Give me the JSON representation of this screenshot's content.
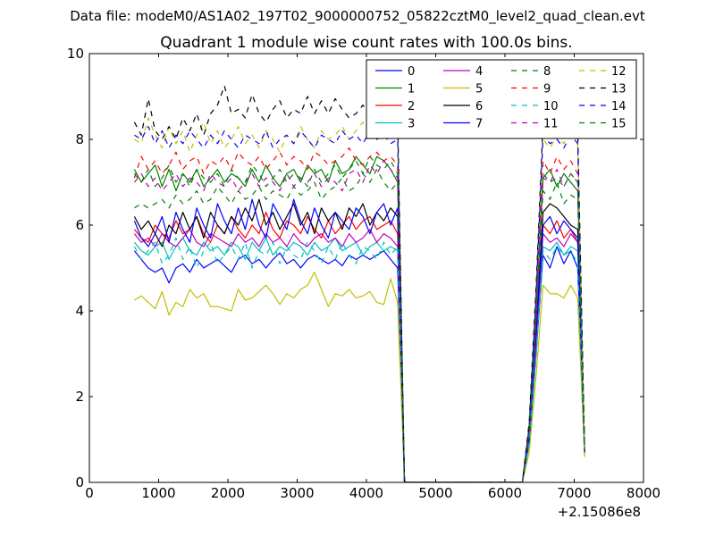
{
  "figure": {
    "suptitle": "Data file: modeM0/AS1A02_197T02_9000000752_05822cztM0_level2_quad_clean.evt",
    "title": "Quadrant 1 module wise count rates with 100.0s bins.",
    "x_offset_label": "+2.15086e8"
  },
  "chart_data": {
    "type": "line",
    "title": "Quadrant 1 module wise count rates with 100.0s bins.",
    "xlabel": "",
    "ylabel": "",
    "xlim": [
      0,
      8000
    ],
    "ylim": [
      0,
      10
    ],
    "x_ticks": [
      0,
      1000,
      2000,
      3000,
      4000,
      5000,
      6000,
      7000,
      8000
    ],
    "y_ticks": [
      0,
      2,
      4,
      6,
      8,
      10
    ],
    "x_offset": "+2.15086e8",
    "grid": false,
    "legend_position": "top-right",
    "legend_columns": 4,
    "x": [
      650,
      750,
      850,
      950,
      1050,
      1150,
      1250,
      1350,
      1450,
      1550,
      1650,
      1750,
      1850,
      1950,
      2050,
      2150,
      2250,
      2350,
      2450,
      2550,
      2650,
      2750,
      2850,
      2950,
      3050,
      3150,
      3250,
      3350,
      3450,
      3550,
      3650,
      3750,
      3850,
      3950,
      4050,
      4150,
      4250,
      4350,
      4450,
      4550,
      4650,
      4750,
      4850,
      4950,
      5050,
      5150,
      5250,
      5350,
      5450,
      5550,
      5650,
      5750,
      5850,
      5950,
      6050,
      6150,
      6250,
      6350,
      6450,
      6550,
      6650,
      6750,
      6850,
      6950,
      7050,
      7150
    ],
    "series": [
      {
        "name": "0",
        "color": "#0000ff",
        "dash": "solid",
        "values": [
          5.4,
          5.2,
          5.0,
          4.9,
          5.0,
          4.65,
          5.0,
          5.1,
          4.9,
          5.2,
          5.0,
          5.1,
          5.2,
          5.05,
          4.9,
          5.2,
          5.3,
          5.1,
          5.2,
          5.0,
          5.2,
          5.35,
          5.1,
          5.2,
          5.0,
          5.2,
          5.3,
          5.2,
          5.1,
          5.2,
          5.05,
          5.3,
          5.2,
          5.3,
          5.2,
          5.3,
          5.4,
          5.2,
          5.0,
          0.0,
          0,
          0,
          0,
          0,
          0,
          0,
          0,
          0,
          0,
          0,
          0,
          0,
          0,
          0,
          0,
          0,
          0,
          0.9,
          3.0,
          5.3,
          5.0,
          5.5,
          5.1,
          5.4,
          5.0,
          0.7
        ]
      },
      {
        "name": "1",
        "color": "#008000",
        "dash": "solid",
        "values": [
          7.3,
          7.0,
          7.2,
          7.4,
          6.9,
          7.3,
          6.8,
          7.2,
          7.0,
          7.3,
          6.9,
          7.1,
          7.3,
          7.0,
          7.2,
          7.1,
          6.9,
          7.3,
          7.0,
          7.4,
          7.1,
          6.9,
          7.2,
          7.3,
          7.0,
          7.4,
          7.2,
          7.3,
          7.0,
          7.5,
          7.2,
          7.3,
          7.6,
          7.4,
          7.2,
          7.6,
          7.5,
          7.3,
          7.0,
          0.0,
          0,
          0,
          0,
          0,
          0,
          0,
          0,
          0,
          0,
          0,
          0,
          0,
          0,
          0,
          0,
          0,
          0,
          1.2,
          4.0,
          7.1,
          7.3,
          6.9,
          7.2,
          7.0,
          6.8,
          0.8
        ]
      },
      {
        "name": "2",
        "color": "#ff0000",
        "dash": "solid",
        "values": [
          5.9,
          5.7,
          5.6,
          6.0,
          5.8,
          5.7,
          6.1,
          5.8,
          5.9,
          6.2,
          5.8,
          5.6,
          6.0,
          5.8,
          6.2,
          5.9,
          5.7,
          6.0,
          5.8,
          6.3,
          5.9,
          5.7,
          6.1,
          6.0,
          5.8,
          6.2,
          5.9,
          5.7,
          6.1,
          5.8,
          6.0,
          6.2,
          5.9,
          6.1,
          6.2,
          5.9,
          6.0,
          6.1,
          5.8,
          0.0,
          0,
          0,
          0,
          0,
          0,
          0,
          0,
          0,
          0,
          0,
          0,
          0,
          0,
          0,
          0,
          0,
          0,
          1.0,
          3.4,
          6.0,
          5.8,
          6.1,
          5.7,
          5.9,
          5.6,
          0.7
        ]
      },
      {
        "name": "3",
        "color": "#00bfbf",
        "dash": "solid",
        "values": [
          5.6,
          5.4,
          5.3,
          5.5,
          5.6,
          5.2,
          5.5,
          5.7,
          5.4,
          5.3,
          5.6,
          5.4,
          5.5,
          5.3,
          5.6,
          5.5,
          5.2,
          5.6,
          5.4,
          5.7,
          5.3,
          5.5,
          5.4,
          5.6,
          5.5,
          5.3,
          5.6,
          5.4,
          5.5,
          5.7,
          5.4,
          5.5,
          5.6,
          5.3,
          5.5,
          5.6,
          5.4,
          5.5,
          5.4,
          0.0,
          0,
          0,
          0,
          0,
          0,
          0,
          0,
          0,
          0,
          0,
          0,
          0,
          0,
          0,
          0,
          0,
          0,
          0.9,
          3.1,
          5.5,
          5.4,
          5.6,
          5.3,
          5.5,
          5.4,
          0.7
        ]
      },
      {
        "name": "4",
        "color": "#bf00bf",
        "dash": "solid",
        "values": [
          5.8,
          5.6,
          5.7,
          5.5,
          5.8,
          5.6,
          5.5,
          5.7,
          5.9,
          5.6,
          5.5,
          5.8,
          5.7,
          5.6,
          5.5,
          5.8,
          5.6,
          5.7,
          5.5,
          5.8,
          5.6,
          5.7,
          5.5,
          5.8,
          5.6,
          5.5,
          5.7,
          5.8,
          5.6,
          5.7,
          5.5,
          5.8,
          5.6,
          5.7,
          5.9,
          5.6,
          5.8,
          5.7,
          5.5,
          0.0,
          0,
          0,
          0,
          0,
          0,
          0,
          0,
          0,
          0,
          0,
          0,
          0,
          0,
          0,
          0,
          0,
          0,
          1.0,
          3.3,
          5.8,
          5.6,
          5.7,
          5.5,
          5.8,
          5.6,
          0.6
        ]
      },
      {
        "name": "5",
        "color": "#bfbf00",
        "dash": "solid",
        "values": [
          4.25,
          4.35,
          4.2,
          4.05,
          4.45,
          3.9,
          4.2,
          4.1,
          4.5,
          4.3,
          4.4,
          4.1,
          4.1,
          4.05,
          4.0,
          4.5,
          4.25,
          4.3,
          4.45,
          4.6,
          4.4,
          4.15,
          4.4,
          4.3,
          4.5,
          4.6,
          4.9,
          4.5,
          4.1,
          4.4,
          4.35,
          4.5,
          4.3,
          4.35,
          4.45,
          4.2,
          4.15,
          4.75,
          4.2,
          0.0,
          0,
          0,
          0,
          0,
          0,
          0,
          0,
          0,
          0,
          0,
          0,
          0,
          0,
          0,
          0,
          0,
          0,
          0.7,
          2.5,
          4.6,
          4.4,
          4.4,
          4.3,
          4.6,
          4.3,
          0.6
        ]
      },
      {
        "name": "6",
        "color": "#000000",
        "dash": "solid",
        "values": [
          6.2,
          5.9,
          6.1,
          5.8,
          5.5,
          6.0,
          5.8,
          6.3,
          5.9,
          6.2,
          5.7,
          6.3,
          6.0,
          5.8,
          6.2,
          6.0,
          6.4,
          6.1,
          6.6,
          6.0,
          6.3,
          5.9,
          6.2,
          6.5,
          6.0,
          6.3,
          5.8,
          6.4,
          6.1,
          6.3,
          5.9,
          6.4,
          6.2,
          6.5,
          6.0,
          6.3,
          6.1,
          6.4,
          6.2,
          0.0,
          0,
          0,
          0,
          0,
          0,
          0,
          0,
          0,
          0,
          0,
          0,
          0,
          0,
          0,
          0,
          0,
          0,
          1.1,
          3.6,
          6.3,
          6.5,
          6.4,
          6.2,
          6.0,
          5.9,
          0.8
        ]
      },
      {
        "name": "7",
        "color": "#0000ff",
        "dash": "solid",
        "values": [
          6.1,
          5.7,
          5.5,
          5.8,
          6.2,
          5.6,
          6.3,
          5.9,
          5.6,
          6.4,
          6.0,
          5.7,
          6.5,
          6.1,
          5.8,
          6.4,
          5.9,
          6.6,
          6.0,
          5.7,
          6.5,
          6.2,
          5.9,
          6.6,
          6.1,
          5.8,
          6.4,
          6.0,
          5.7,
          6.3,
          6.1,
          5.9,
          6.4,
          6.2,
          5.8,
          6.3,
          6.5,
          6.0,
          6.4,
          0.0,
          0,
          0,
          0,
          0,
          0,
          0,
          0,
          0,
          0,
          0,
          0,
          0,
          0,
          0,
          0,
          0,
          0,
          1.0,
          3.5,
          6.0,
          6.2,
          5.8,
          6.1,
          5.9,
          5.7,
          0.7
        ]
      },
      {
        "name": "8",
        "color": "#008000",
        "dash": "dashed",
        "values": [
          6.4,
          6.5,
          6.4,
          6.5,
          6.6,
          6.4,
          6.7,
          6.5,
          6.6,
          6.8,
          6.5,
          6.6,
          6.9,
          6.7,
          6.5,
          6.8,
          6.6,
          6.7,
          6.9,
          6.6,
          6.8,
          6.7,
          6.6,
          6.9,
          6.7,
          6.8,
          7.0,
          6.6,
          6.8,
          6.9,
          7.1,
          6.8,
          6.9,
          7.2,
          7.0,
          7.3,
          7.0,
          6.8,
          7.0,
          0.0,
          0,
          0,
          0,
          0,
          0,
          0,
          0,
          0,
          0,
          0,
          0,
          0,
          0,
          0,
          0,
          0,
          0,
          1.1,
          3.8,
          6.8,
          6.6,
          7.0,
          6.5,
          6.7,
          6.6,
          0.7
        ]
      },
      {
        "name": "9",
        "color": "#ff0000",
        "dash": "dashed",
        "values": [
          7.1,
          7.6,
          7.3,
          7.5,
          7.2,
          7.4,
          7.7,
          7.3,
          7.5,
          7.6,
          7.2,
          7.5,
          7.4,
          7.6,
          7.3,
          7.7,
          7.5,
          7.4,
          7.6,
          7.3,
          7.5,
          7.7,
          7.4,
          7.6,
          7.5,
          7.3,
          7.7,
          7.6,
          7.4,
          7.5,
          7.6,
          7.8,
          7.5,
          7.4,
          7.6,
          7.7,
          7.5,
          7.6,
          7.4,
          0.0,
          0,
          0,
          0,
          0,
          0,
          0,
          0,
          0,
          0,
          0,
          0,
          0,
          0,
          0,
          0,
          0,
          0,
          1.2,
          4.1,
          7.5,
          7.2,
          7.6,
          7.3,
          7.5,
          7.2,
          0.8
        ]
      },
      {
        "name": "10",
        "color": "#00bfbf",
        "dash": "dashed",
        "values": [
          5.5,
          5.2,
          5.4,
          5.6,
          5.1,
          5.3,
          5.7,
          5.2,
          5.5,
          5.0,
          5.4,
          5.6,
          5.1,
          5.3,
          5.5,
          5.2,
          5.6,
          5.0,
          5.4,
          5.3,
          5.6,
          5.1,
          5.5,
          5.3,
          5.2,
          5.6,
          5.4,
          5.1,
          5.5,
          5.2,
          5.6,
          5.3,
          5.1,
          5.5,
          5.4,
          5.2,
          5.6,
          5.3,
          5.5,
          0.0,
          0,
          0,
          0,
          0,
          0,
          0,
          0,
          0,
          0,
          0,
          0,
          0,
          0,
          0,
          0,
          0,
          0,
          0.9,
          3.0,
          5.4,
          5.2,
          5.5,
          5.3,
          5.4,
          5.1,
          0.6
        ]
      },
      {
        "name": "11",
        "color": "#bf00bf",
        "dash": "dashed",
        "values": [
          7.0,
          7.2,
          6.9,
          7.1,
          6.8,
          7.0,
          7.2,
          6.9,
          7.1,
          7.0,
          6.8,
          7.2,
          7.0,
          6.9,
          7.1,
          6.8,
          7.0,
          7.2,
          6.9,
          7.1,
          7.0,
          6.8,
          7.2,
          6.9,
          7.1,
          7.0,
          7.2,
          6.9,
          7.1,
          7.0,
          6.8,
          7.2,
          7.3,
          7.0,
          7.4,
          7.2,
          7.5,
          7.3,
          7.1,
          0.0,
          0,
          0,
          0,
          0,
          0,
          0,
          0,
          0,
          0,
          0,
          0,
          0,
          0,
          0,
          0,
          0,
          0,
          1.2,
          3.9,
          7.1,
          7.0,
          7.3,
          6.9,
          7.2,
          7.0,
          0.7
        ]
      },
      {
        "name": "12",
        "color": "#bfbf00",
        "dash": "dashed",
        "values": [
          8.0,
          7.9,
          8.5,
          8.1,
          7.8,
          8.3,
          7.9,
          8.2,
          7.7,
          8.1,
          8.4,
          7.9,
          8.2,
          7.8,
          8.0,
          8.3,
          7.9,
          8.1,
          7.8,
          8.2,
          8.0,
          7.7,
          8.1,
          7.9,
          8.3,
          8.0,
          7.8,
          8.2,
          8.0,
          8.1,
          8.3,
          8.0,
          8.2,
          8.4,
          8.1,
          8.3,
          8.5,
          8.2,
          8.4,
          0.0,
          0,
          0,
          0,
          0,
          0,
          0,
          0,
          0,
          0,
          0,
          0,
          0,
          0,
          0,
          0,
          0,
          0,
          1.3,
          4.3,
          8.0,
          7.8,
          8.1,
          7.9,
          8.2,
          7.9,
          0.8
        ]
      },
      {
        "name": "13",
        "color": "#000000",
        "dash": "dashed",
        "values": [
          8.4,
          8.1,
          8.95,
          8.2,
          8.0,
          8.3,
          8.0,
          8.5,
          8.2,
          8.6,
          8.1,
          8.6,
          8.8,
          9.25,
          8.6,
          8.7,
          8.5,
          9.05,
          8.6,
          8.4,
          8.7,
          8.9,
          8.5,
          8.7,
          8.6,
          9.0,
          8.6,
          8.9,
          8.6,
          8.95,
          8.7,
          8.5,
          8.6,
          8.8,
          8.5,
          8.7,
          8.8,
          8.6,
          8.5,
          0.0,
          0,
          0,
          0,
          0,
          0,
          0,
          0,
          0,
          0,
          0,
          0,
          0,
          0,
          0,
          0,
          0,
          0,
          1.4,
          4.6,
          8.4,
          8.1,
          8.3,
          8.0,
          8.4,
          8.2,
          0.8
        ]
      },
      {
        "name": "14",
        "color": "#0000ff",
        "dash": "dashed",
        "values": [
          8.1,
          8.0,
          8.3,
          7.9,
          8.2,
          7.8,
          8.1,
          7.9,
          8.2,
          8.0,
          7.8,
          8.1,
          7.9,
          8.2,
          8.0,
          7.8,
          8.1,
          8.0,
          7.9,
          8.2,
          7.8,
          8.0,
          8.1,
          7.9,
          8.2,
          8.0,
          7.8,
          8.1,
          8.0,
          7.9,
          8.2,
          8.0,
          8.1,
          7.9,
          8.2,
          8.0,
          8.1,
          7.9,
          8.0,
          0.0,
          0,
          0,
          0,
          0,
          0,
          0,
          0,
          0,
          0,
          0,
          0,
          0,
          0,
          0,
          0,
          0,
          0,
          1.3,
          4.4,
          8.1,
          7.9,
          8.0,
          7.8,
          8.1,
          7.9,
          0.7
        ]
      },
      {
        "name": "15",
        "color": "#008000",
        "dash": "dashed",
        "values": [
          7.2,
          7.0,
          7.3,
          6.9,
          7.1,
          7.4,
          7.0,
          7.2,
          6.9,
          7.3,
          7.1,
          7.0,
          7.2,
          6.9,
          7.3,
          7.1,
          7.0,
          7.4,
          7.2,
          6.9,
          7.1,
          7.3,
          7.0,
          7.2,
          7.1,
          6.9,
          7.3,
          7.0,
          7.2,
          7.4,
          7.1,
          7.3,
          7.5,
          7.2,
          7.6,
          7.4,
          7.3,
          7.5,
          7.2,
          0.0,
          0,
          0,
          0,
          0,
          0,
          0,
          0,
          0,
          0,
          0,
          0,
          0,
          0,
          0,
          0,
          0,
          0,
          1.2,
          4.0,
          7.2,
          7.0,
          7.1,
          6.9,
          7.2,
          7.0,
          0.7
        ]
      }
    ]
  }
}
